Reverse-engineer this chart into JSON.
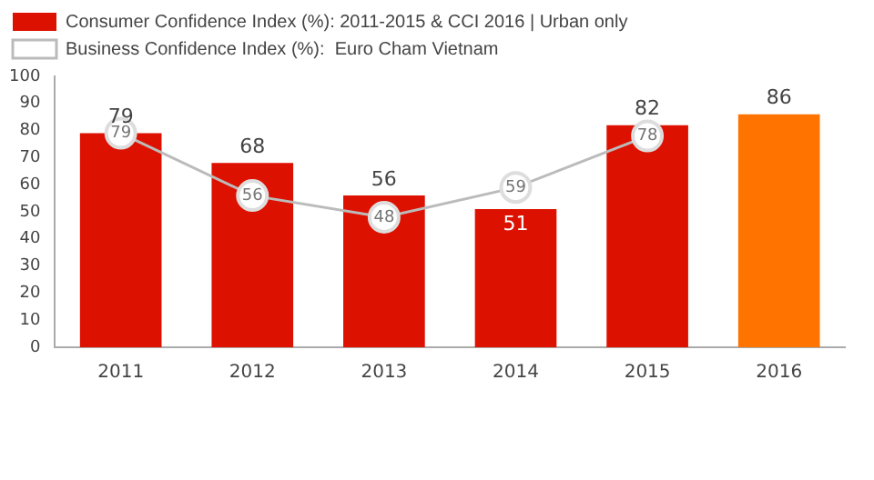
{
  "chart_data": {
    "type": "bar",
    "categories": [
      "2011",
      "2012",
      "2013",
      "2014",
      "2015",
      "2016"
    ],
    "series": [
      {
        "name": "Consumer Confidence Index (%): 2011-2015 & CCI 2016 | Urban only",
        "color": "#dd1100",
        "colors": [
          "#dd1100",
          "#dd1100",
          "#dd1100",
          "#dd1100",
          "#dd1100",
          "#ff7300"
        ],
        "values": [
          79,
          68,
          56,
          51,
          82,
          86
        ]
      },
      {
        "name": "Business Confidence Index (%):  Euro Cham Vietnam",
        "type": "line",
        "color": "#bbbbbb",
        "values": [
          79,
          56,
          48,
          59,
          78,
          null
        ]
      }
    ],
    "ylim": [
      0,
      100
    ],
    "yticks": [
      0,
      10,
      20,
      30,
      40,
      50,
      60,
      70,
      80,
      90,
      100
    ],
    "grid": false,
    "legend": "top left",
    "data_labels": true,
    "marker": "circle"
  }
}
